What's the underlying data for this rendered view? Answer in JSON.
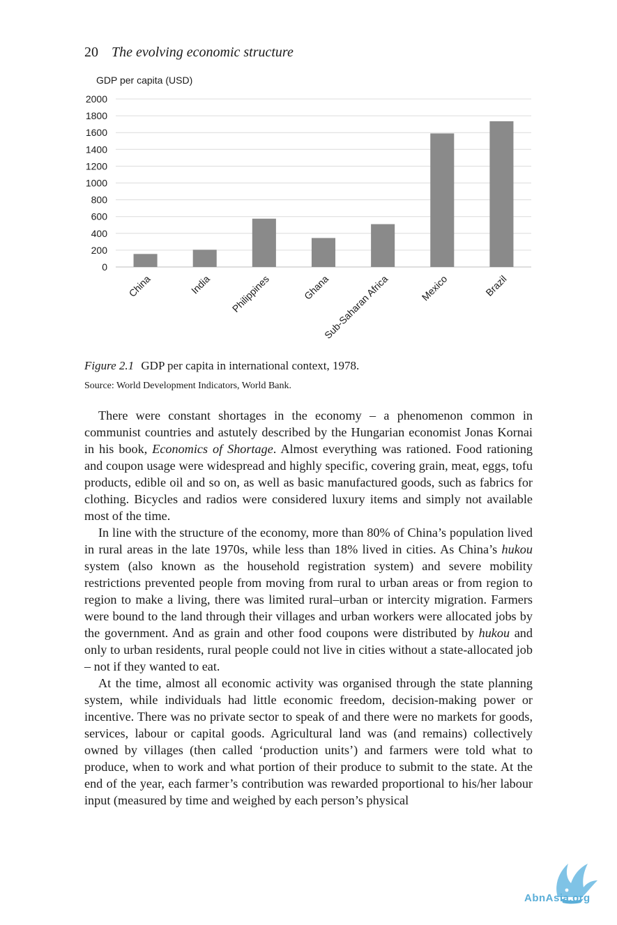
{
  "running_head": {
    "page_number": "20",
    "title": "The evolving economic structure"
  },
  "chart_data": {
    "type": "bar",
    "ylabel": "GDP per capita (USD)",
    "categories": [
      "China",
      "India",
      "Philippines",
      "Ghana",
      "Sub-Saharan Africa",
      "Mexico",
      "Brazil"
    ],
    "values": [
      155,
      205,
      575,
      345,
      510,
      1590,
      1735
    ],
    "ylim": [
      0,
      2000
    ],
    "yticks": [
      "0",
      "200",
      "400",
      "600",
      "800",
      "1000",
      "1200",
      "1400",
      "1600",
      "1800",
      "2000"
    ],
    "grid": true,
    "bar_color": "#8a8a8a"
  },
  "figure": {
    "label": "Figure 2.1",
    "caption": "GDP per capita in international context, 1978.",
    "source": "Source: World Development Indicators, World Bank."
  },
  "paragraphs": [
    {
      "segments": [
        {
          "text": "There were constant shortages in the economy – a phenomenon common in communist countries and astutely described by the Hungarian economist Jonas Kornai in his book, "
        },
        {
          "text": "Economics of Shortage",
          "italic": true
        },
        {
          "text": ". Almost everything was rationed. Food rationing and coupon usage were widespread and highly specific, covering grain, meat, eggs, tofu products, edible oil and so on, as well as basic manufactured goods, such as fabrics for clothing. Bicycles and radios were considered luxury items and simply not available most of the time."
        }
      ]
    },
    {
      "segments": [
        {
          "text": "In line with the structure of the economy, more than 80% of China’s population lived in rural areas in the late 1970s, while less than 18% lived in cities. As China’s "
        },
        {
          "text": "hukou",
          "italic": true
        },
        {
          "text": " system (also known as the household registration system) and severe mobility restrictions prevented people from moving from rural to urban areas or from region to region to make a living, there was limited rural–urban or intercity migration. Farmers were bound to the land through their villages and urban workers were allocated jobs by the government. And as grain and other food coupons were distributed by "
        },
        {
          "text": "hukou",
          "italic": true
        },
        {
          "text": " and only to urban residents, rural people could not live in cities without a state-allocated job – not if they wanted to eat."
        }
      ]
    },
    {
      "segments": [
        {
          "text": "At the time, almost all economic activity was organised through the state planning system, while individuals had little economic freedom, decision-making power or incentive. There was no private sector to speak of and there were no markets for goods, services, labour or capital goods. Agricultural land was (and remains) collectively owned by villages (then called ‘production units’) and farmers were told what to produce, when to work and what portion of their produce to submit to the state. At the end of the year, each farmer’s contribution was rewarded proportional to his/her labour input (measured by time and weighed by each person’s physical"
        }
      ]
    }
  ],
  "watermark": {
    "text": "AbnAsia.org",
    "color": "#5aaed8",
    "icon": "bird-logo-icon"
  }
}
